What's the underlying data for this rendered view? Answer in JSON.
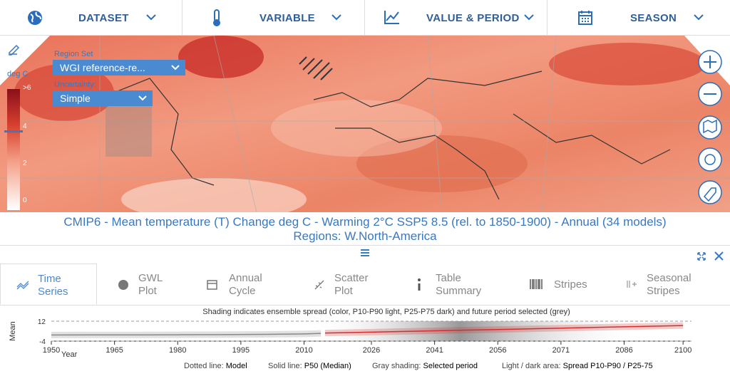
{
  "nav": [
    "DATASET",
    "VARIABLE",
    "VALUE & PERIOD",
    "SEASON"
  ],
  "map": {
    "units": "deg C",
    "region_set_label": "Region Set",
    "region_set_value": "WGI reference-re...",
    "uncertainty_label": "Uncertainty:",
    "uncertainty_value": "Simple",
    "colorbar_ticks": [
      ">6",
      "4",
      "2",
      "0"
    ]
  },
  "caption": [
    "CMIP6 - Mean temperature (T) Change deg C - Warming 2°C SSP5 8.5 (rel. to 1850-1900) - Annual (34 models)",
    "Regions: W.North-America"
  ],
  "tabs": [
    "Time Series",
    "GWL Plot",
    "Annual Cycle",
    "Scatter Plot",
    "Table Summary",
    "Stripes",
    "Seasonal Stripes"
  ],
  "chart_data": {
    "type": "line",
    "subtitle": "Shading indicates ensemble spread (color, P10-P90 light, P25-P75 dark) and future period selected (grey)",
    "ylabel": "Mean",
    "xlabel": "Year",
    "xlim": [
      1950,
      2102
    ],
    "xticks": [
      1950,
      1965,
      1980,
      1995,
      2010,
      2026,
      2041,
      2056,
      2071,
      2086,
      2100
    ],
    "ylim": [
      -4,
      12
    ],
    "yticks": [
      12,
      -4
    ],
    "series": [
      {
        "color": "#888888",
        "x": [
          1950,
          1960,
          1970,
          1980,
          1990,
          2000,
          2010,
          2014
        ],
        "values": [
          0.9,
          1.0,
          1.0,
          1.1,
          1.2,
          1.4,
          1.8,
          2.2
        ]
      },
      {
        "color": "#d03030",
        "x": [
          2015,
          2030,
          2045,
          2060,
          2075,
          2090,
          2100
        ],
        "values": [
          2.5,
          3.5,
          4.6,
          5.6,
          6.7,
          7.8,
          8.5
        ]
      }
    ],
    "legend": [
      {
        "key": "Dotted line:",
        "value": "Model"
      },
      {
        "key": "Solid line:",
        "value": "P50 (Median)"
      },
      {
        "key": "Gray shading:",
        "value": "Selected period"
      },
      {
        "key": "Light / dark area:",
        "value": "Spread P10-P90 / P25-75"
      }
    ]
  }
}
